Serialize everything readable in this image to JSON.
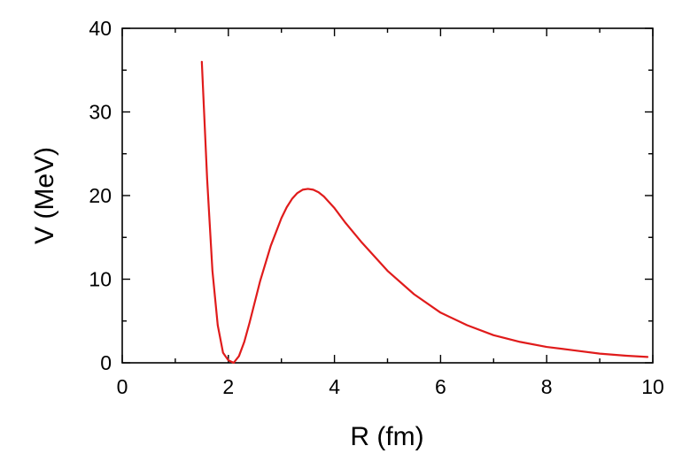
{
  "chart_data": {
    "type": "line",
    "title": "",
    "xlabel": "R (fm)",
    "ylabel": "V (MeV)",
    "xlim": [
      0,
      10
    ],
    "ylim": [
      0,
      40
    ],
    "x_ticks": [
      0,
      2,
      4,
      6,
      8,
      10
    ],
    "y_ticks": [
      0,
      10,
      20,
      30,
      40
    ],
    "x_tick_labels": [
      "0",
      "2",
      "4",
      "6",
      "8",
      "10"
    ],
    "y_tick_labels": [
      "0",
      "10",
      "20",
      "30",
      "40"
    ],
    "grid": false,
    "legend": "none",
    "line_color": "#e01b1b",
    "series": [
      {
        "x": [
          1.5,
          1.6,
          1.7,
          1.8,
          1.9,
          2.0,
          2.1,
          2.2,
          2.3,
          2.4,
          2.5,
          2.6,
          2.8,
          3.0,
          3.1,
          3.2,
          3.3,
          3.4,
          3.5,
          3.6,
          3.7,
          3.8,
          4.0,
          4.2,
          4.5,
          5.0,
          5.5,
          6.0,
          6.5,
          7.0,
          7.5,
          8.0,
          8.5,
          9.0,
          9.5,
          9.9
        ],
        "y": [
          36.0,
          22.0,
          11.0,
          4.5,
          1.2,
          0.3,
          0.0,
          0.8,
          2.5,
          4.8,
          7.3,
          9.8,
          14.0,
          17.3,
          18.6,
          19.6,
          20.3,
          20.7,
          20.8,
          20.7,
          20.4,
          19.9,
          18.5,
          16.8,
          14.5,
          11.0,
          8.2,
          6.0,
          4.5,
          3.3,
          2.5,
          1.9,
          1.5,
          1.1,
          0.85,
          0.7
        ]
      }
    ]
  }
}
